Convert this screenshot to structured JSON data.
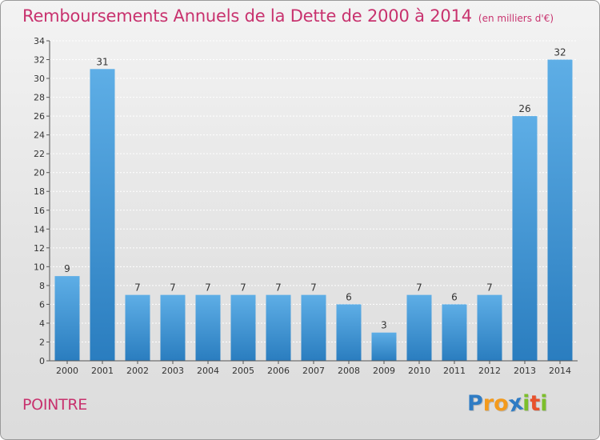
{
  "header": {
    "title": "Remboursements Annuels de la Dette de 2000 à 2014",
    "unit": "(en milliers d'€)"
  },
  "footer": {
    "commune": "POINTRE",
    "logo": {
      "letters": [
        "P",
        "r",
        "o",
        "x",
        "i",
        "t",
        "i"
      ],
      "colors": [
        "#2f7cc4",
        "#f39a1c",
        "#f39a1c",
        "#2f7cc4",
        "#7cbf2b",
        "#e8522c",
        "#7cbf2b"
      ]
    }
  },
  "colors": {
    "bar_light": "#5eaee6",
    "bar_dark": "#2a7dbf",
    "title": "#c8326e",
    "grid": "#ffffff",
    "axis_text": "#333333"
  },
  "chart_data": {
    "type": "bar",
    "title": "Remboursements Annuels de la Dette de 2000 à 2014",
    "subtitle": "(en milliers d'€)",
    "categories": [
      "2000",
      "2001",
      "2002",
      "2003",
      "2004",
      "2005",
      "2006",
      "2007",
      "2008",
      "2009",
      "2010",
      "2011",
      "2012",
      "2013",
      "2014"
    ],
    "values": [
      9,
      31,
      7,
      7,
      7,
      7,
      7,
      7,
      6,
      3,
      7,
      6,
      7,
      26,
      32
    ],
    "ylim": [
      0,
      34
    ],
    "yticks": [
      0,
      2,
      4,
      6,
      8,
      10,
      12,
      14,
      16,
      18,
      20,
      22,
      24,
      26,
      28,
      30,
      32,
      34
    ],
    "grid": true,
    "xlabel": "",
    "ylabel": ""
  }
}
